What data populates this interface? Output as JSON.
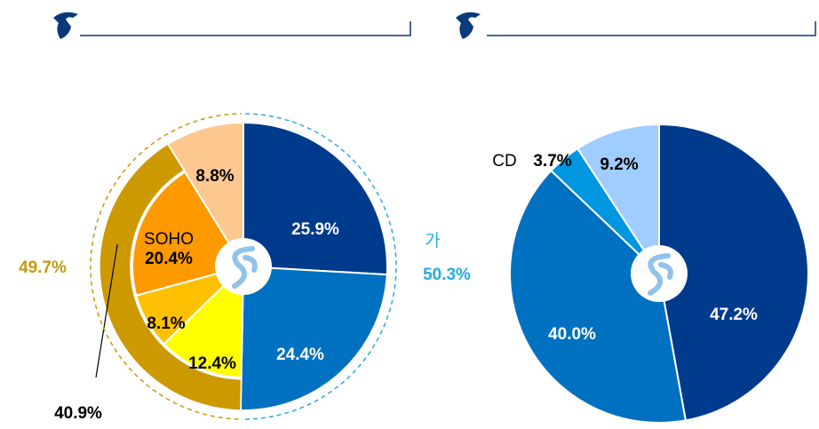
{
  "chart_data": [
    {
      "type": "pie",
      "categories": [
        null,
        null,
        null,
        null,
        "SOHO",
        null
      ],
      "values": [
        25.9,
        24.4,
        12.4,
        8.1,
        20.4,
        8.8
      ],
      "value_labels": [
        "25.9%",
        "24.4%",
        "12.4%",
        "8.1%",
        "20.4%",
        "8.8%"
      ],
      "colors": [
        "#003a8c",
        "#0070c0",
        "#ffff00",
        "#ffc000",
        "#ff9900",
        "#fcc890"
      ],
      "ring": {
        "value": 40.9,
        "value_label": "40.9%",
        "color": "#cc9900"
      },
      "groups": [
        {
          "label": "가",
          "value": 50.3,
          "value_label": "50.3%",
          "color": "#29aae1"
        },
        {
          "value": 49.7,
          "value_label": "49.7%",
          "color": "#c49a10"
        }
      ]
    },
    {
      "type": "pie",
      "categories": [
        null,
        null,
        "CD",
        null
      ],
      "values": [
        47.2,
        40.0,
        3.7,
        9.2
      ],
      "value_labels": [
        "47.2%",
        "40.0%",
        "3.7%",
        "9.2%"
      ],
      "colors": [
        "#003a8c",
        "#0070c0",
        "#0096e0",
        "#9fcdff"
      ]
    }
  ]
}
